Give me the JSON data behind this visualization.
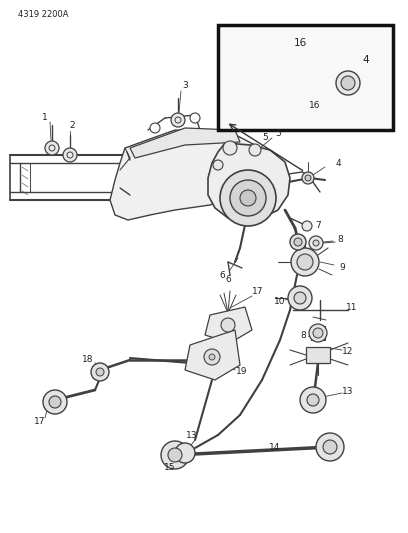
{
  "bg_color": "#ffffff",
  "line_color": "#404040",
  "text_color": "#222222",
  "header_text": "4319 2200A",
  "figsize": [
    4.08,
    5.33
  ],
  "dpi": 100
}
